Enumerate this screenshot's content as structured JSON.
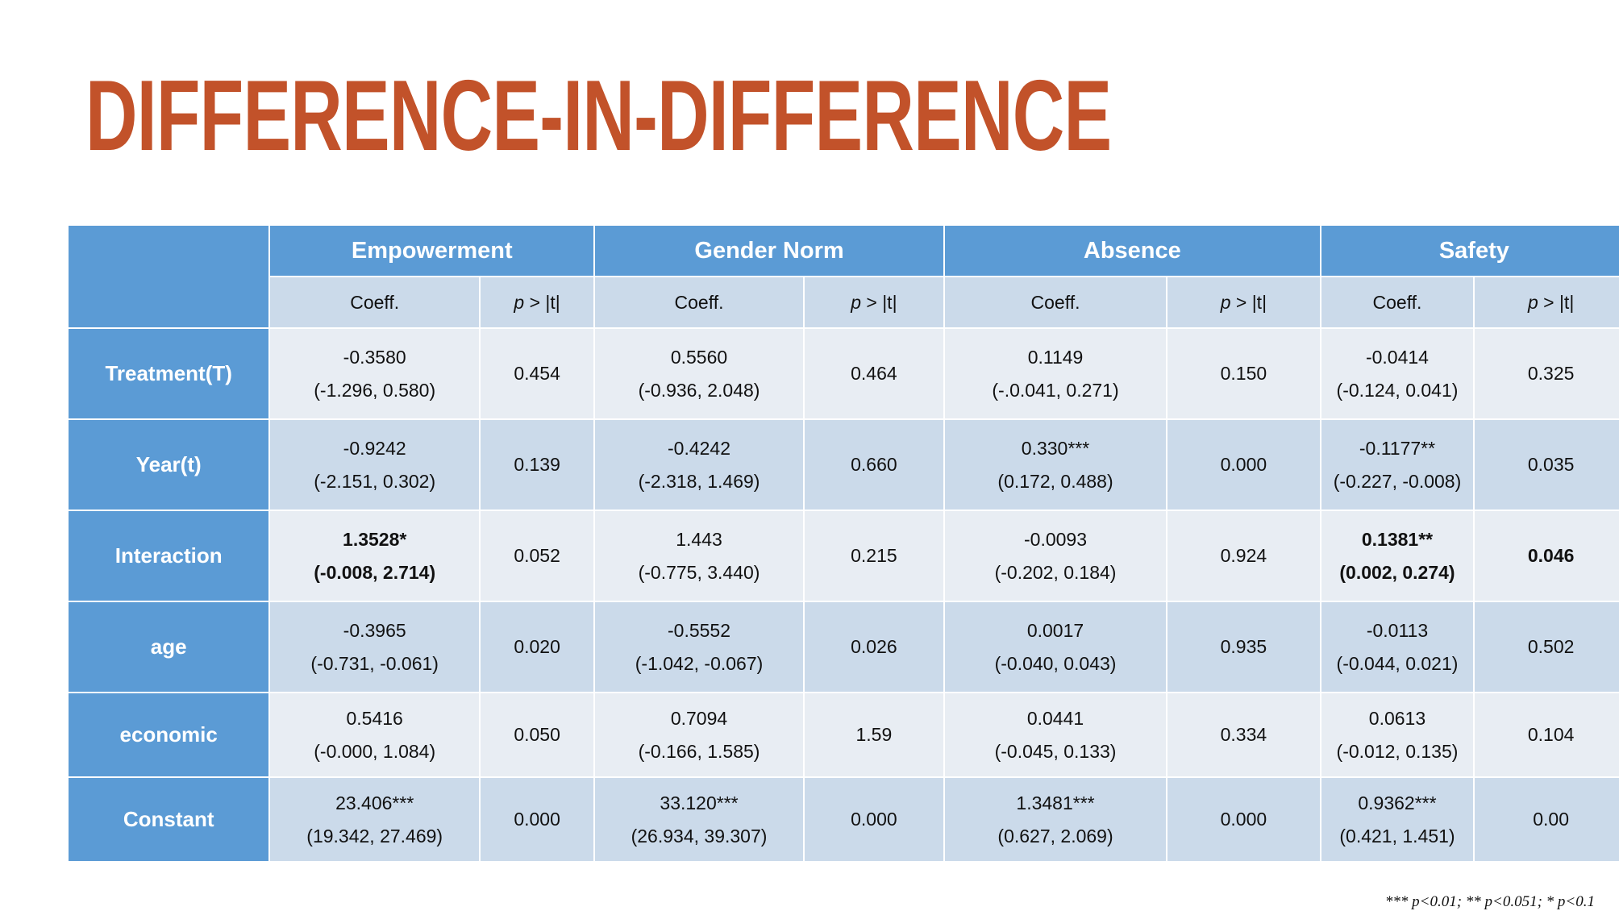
{
  "title": "Difference-in-Difference",
  "groups": [
    "Empowerment",
    "Gender Norm",
    "Absence",
    "Safety"
  ],
  "subheaders": {
    "coeff": "Coeff.",
    "p_prefix": "p",
    "p_suffix": " > |t|"
  },
  "rows": [
    {
      "label": "Treatment(T)",
      "cells": [
        {
          "coef": "-0.3580",
          "ci": "(-1.296, 0.580)",
          "p": "0.454"
        },
        {
          "coef": "0.5560",
          "ci": "(-0.936, 2.048)",
          "p": "0.464"
        },
        {
          "coef": "0.1149",
          "ci": "(-.0.041, 0.271)",
          "p": "0.150"
        },
        {
          "coef": "-0.0414",
          "ci": "(-0.124, 0.041)",
          "p": "0.325"
        }
      ]
    },
    {
      "label": "Year(t)",
      "cells": [
        {
          "coef": "-0.9242",
          "ci": "(-2.151, 0.302)",
          "p": "0.139"
        },
        {
          "coef": "-0.4242",
          "ci": "(-2.318, 1.469)",
          "p": "0.660"
        },
        {
          "coef": "0.330***",
          "ci": "(0.172, 0.488)",
          "p": "0.000"
        },
        {
          "coef": "-0.1177**",
          "ci": "(-0.227, -0.008)",
          "p": "0.035"
        }
      ]
    },
    {
      "label": "Interaction",
      "cells": [
        {
          "coef": "1.3528*",
          "ci": "(-0.008, 2.714)",
          "p": "0.052",
          "bold": true
        },
        {
          "coef": "1.443",
          "ci": "(-0.775, 3.440)",
          "p": "0.215"
        },
        {
          "coef": "-0.0093",
          "ci": "(-0.202, 0.184)",
          "p": "0.924"
        },
        {
          "coef": "0.1381**",
          "ci": "(0.002, 0.274)",
          "p": "0.046",
          "bold": true,
          "bold_p": true
        }
      ]
    },
    {
      "label": "age",
      "cells": [
        {
          "coef": "-0.3965",
          "ci": "(-0.731, -0.061)",
          "p": "0.020"
        },
        {
          "coef": "-0.5552",
          "ci": "(-1.042, -0.067)",
          "p": "0.026"
        },
        {
          "coef": "0.0017",
          "ci": "(-0.040, 0.043)",
          "p": "0.935"
        },
        {
          "coef": "-0.0113",
          "ci": "(-0.044, 0.021)",
          "p": "0.502"
        }
      ]
    },
    {
      "label": "economic",
      "cells": [
        {
          "coef": "0.5416",
          "ci": "(-0.000, 1.084)",
          "p": "0.050"
        },
        {
          "coef": "0.7094",
          "ci": "(-0.166, 1.585)",
          "p": "1.59"
        },
        {
          "coef": "0.0441",
          "ci": "(-0.045, 0.133)",
          "p": "0.334"
        },
        {
          "coef": "0.0613",
          "ci": "(-0.012, 0.135)",
          "p": "0.104"
        }
      ]
    },
    {
      "label": "Constant",
      "cells": [
        {
          "coef": "23.406***",
          "ci": "(19.342, 27.469)",
          "p": "0.000"
        },
        {
          "coef": "33.120***",
          "ci": "(26.934, 39.307)",
          "p": "0.000"
        },
        {
          "coef": "1.3481***",
          "ci": "(0.627, 2.069)",
          "p": "0.000"
        },
        {
          "coef": "0.9362***",
          "ci": "(0.421, 1.451)",
          "p": "0.00"
        }
      ]
    }
  ],
  "footnote": "*** p<0.01; ** p<0.051; * p<0.1",
  "colors": {
    "title": "#c2522a",
    "header": "#5b9bd5",
    "band_light": "#e8edf3",
    "band_mid": "#cbdaea"
  }
}
